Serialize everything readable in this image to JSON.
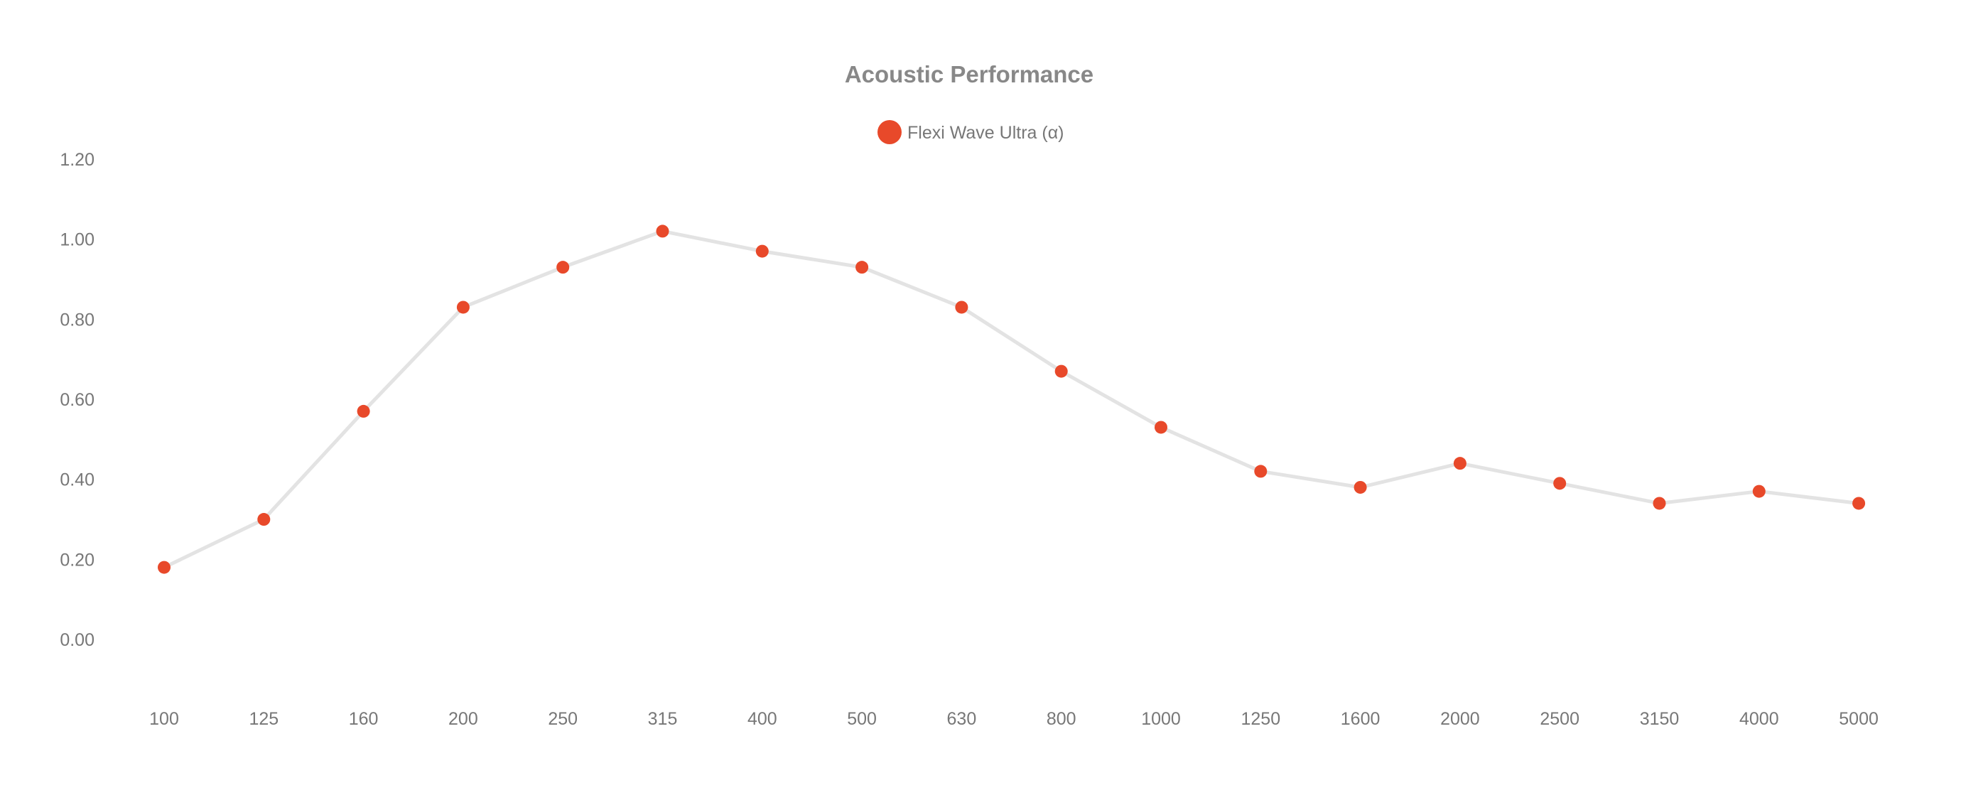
{
  "chart_data": {
    "type": "line",
    "title": "Acoustic Performance",
    "xlabel": "",
    "ylabel": "",
    "categories": [
      "100",
      "125",
      "160",
      "200",
      "250",
      "315",
      "400",
      "500",
      "630",
      "800",
      "1000",
      "1250",
      "1600",
      "2000",
      "2500",
      "3150",
      "4000",
      "5000"
    ],
    "series": [
      {
        "name": "Flexi Wave Ultra (α)",
        "values": [
          0.18,
          0.3,
          0.57,
          0.83,
          0.93,
          1.02,
          0.97,
          0.93,
          0.83,
          0.67,
          0.53,
          0.42,
          0.38,
          0.44,
          0.39,
          0.34,
          0.37,
          0.34
        ]
      }
    ],
    "ylim": [
      0,
      1.2
    ],
    "yticks": [
      "0.00",
      "0.20",
      "0.40",
      "0.60",
      "0.80",
      "1.00",
      "1.20"
    ],
    "grid": false,
    "legend_position": "top-center",
    "colors": {
      "marker": "#e8492a",
      "line": "#e3e3e3",
      "text": "#777777",
      "title": "#888888"
    }
  }
}
